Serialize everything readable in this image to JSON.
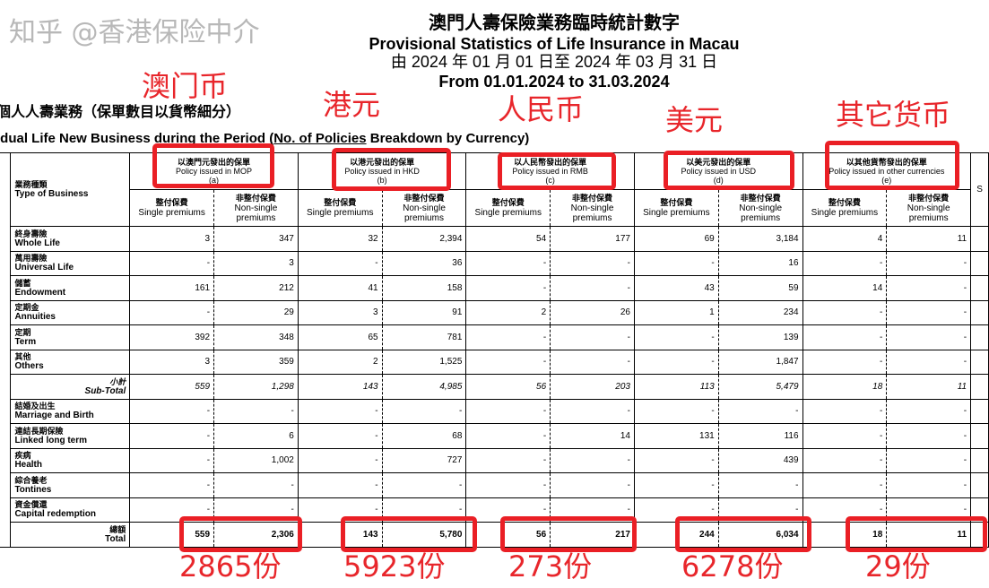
{
  "title": {
    "zh": "澳門人壽保險業務臨時統計數字",
    "en": "Provisional Statistics of Life Insurance in Macau",
    "period_zh": "由 2024 年 01 月 01 日至 2024 年 03 月 31 日",
    "period_en": "From 01.01.2024 to 31.03.2024"
  },
  "section": {
    "zh": "個人人壽業務（保單數目以貨幣細分）",
    "en_pre": "idual Life New Business during the Period (",
    "en_u": "No. of Policies",
    "en_post": " Breakdown by Currency)"
  },
  "table": {
    "type_header": {
      "zh": "業務種類",
      "en": "Type of Business"
    },
    "currencies": [
      {
        "zh": "以澳門元發出的保單",
        "en": "Policy issued in MOP",
        "code": "(a)"
      },
      {
        "zh": "以港元發出的保單",
        "en": "Policy issued in HKD",
        "code": "(b)"
      },
      {
        "zh": "以人民幣發出的保單",
        "en": "Policy issued in RMB",
        "code": "(c)"
      },
      {
        "zh": "以美元發出的保單",
        "en": "Policy issued in USD",
        "code": "(d)"
      },
      {
        "zh": "以其他貨幣發出的保單",
        "en": "Policy issued in other currencies",
        "code": "(e)"
      }
    ],
    "sub_headers": {
      "single_zh": "整付保費",
      "single_en": "Single premiums",
      "nonsingle_zh": "非整付保費",
      "nonsingle_en": "Non-single premiums",
      "cut": "S"
    },
    "rows": [
      {
        "zh": "終身壽險",
        "en": "Whole Life",
        "v": [
          "3",
          "347",
          "32",
          "2,394",
          "54",
          "177",
          "69",
          "3,184",
          "4",
          "11"
        ]
      },
      {
        "zh": "萬用壽險",
        "en": "Universal Life",
        "v": [
          "-",
          "3",
          "-",
          "36",
          "-",
          "-",
          "-",
          "16",
          "-",
          "-"
        ]
      },
      {
        "zh": "儲蓄",
        "en": "Endowment",
        "v": [
          "161",
          "212",
          "41",
          "158",
          "-",
          "-",
          "43",
          "59",
          "14",
          "-"
        ]
      },
      {
        "zh": "定期金",
        "en": "Annuities",
        "v": [
          "-",
          "29",
          "3",
          "91",
          "2",
          "26",
          "1",
          "234",
          "-",
          "-"
        ]
      },
      {
        "zh": "定期",
        "en": "Term",
        "v": [
          "392",
          "348",
          "65",
          "781",
          "-",
          "-",
          "-",
          "139",
          "-",
          "-"
        ]
      },
      {
        "zh": "其他",
        "en": "Others",
        "v": [
          "3",
          "359",
          "2",
          "1,525",
          "-",
          "-",
          "-",
          "1,847",
          "-",
          "-"
        ]
      },
      {
        "zh": "小計",
        "en": "Sub-Total",
        "v": [
          "559",
          "1,298",
          "143",
          "4,985",
          "56",
          "203",
          "113",
          "5,479",
          "18",
          "11"
        ]
      },
      {
        "zh": "結婚及出生",
        "en": "Marriage and Birth",
        "v": [
          "-",
          "-",
          "-",
          "-",
          "-",
          "-",
          "-",
          "-",
          "-",
          "-"
        ]
      },
      {
        "zh": "連結長期保險",
        "en": "Linked long term",
        "v": [
          "-",
          "6",
          "-",
          "68",
          "-",
          "14",
          "131",
          "116",
          "-",
          "-"
        ]
      },
      {
        "zh": "疾病",
        "en": "Health",
        "v": [
          "-",
          "1,002",
          "-",
          "727",
          "-",
          "-",
          "-",
          "439",
          "-",
          "-"
        ]
      },
      {
        "zh": "綜合養老",
        "en": "Tontines",
        "v": [
          "-",
          "-",
          "-",
          "-",
          "-",
          "-",
          "-",
          "-",
          "-",
          "-"
        ]
      },
      {
        "zh": "資金償還",
        "en": "Capital redemption",
        "v": [
          "-",
          "-",
          "-",
          "-",
          "-",
          "-",
          "-",
          "-",
          "-",
          "-"
        ]
      },
      {
        "zh": "總額",
        "en": "Total",
        "v": [
          "559",
          "2,306",
          "143",
          "5,780",
          "56",
          "217",
          "244",
          "6,034",
          "18",
          "11"
        ]
      }
    ]
  },
  "annotations": {
    "labels": [
      "澳门币",
      "港元",
      "人民币",
      "美元",
      "其它货币"
    ],
    "totals": [
      "2865份",
      "5923份",
      "273份",
      "6278份",
      "29份"
    ],
    "accent": "#e8262b"
  },
  "watermark": "知乎 @香港保险中介"
}
